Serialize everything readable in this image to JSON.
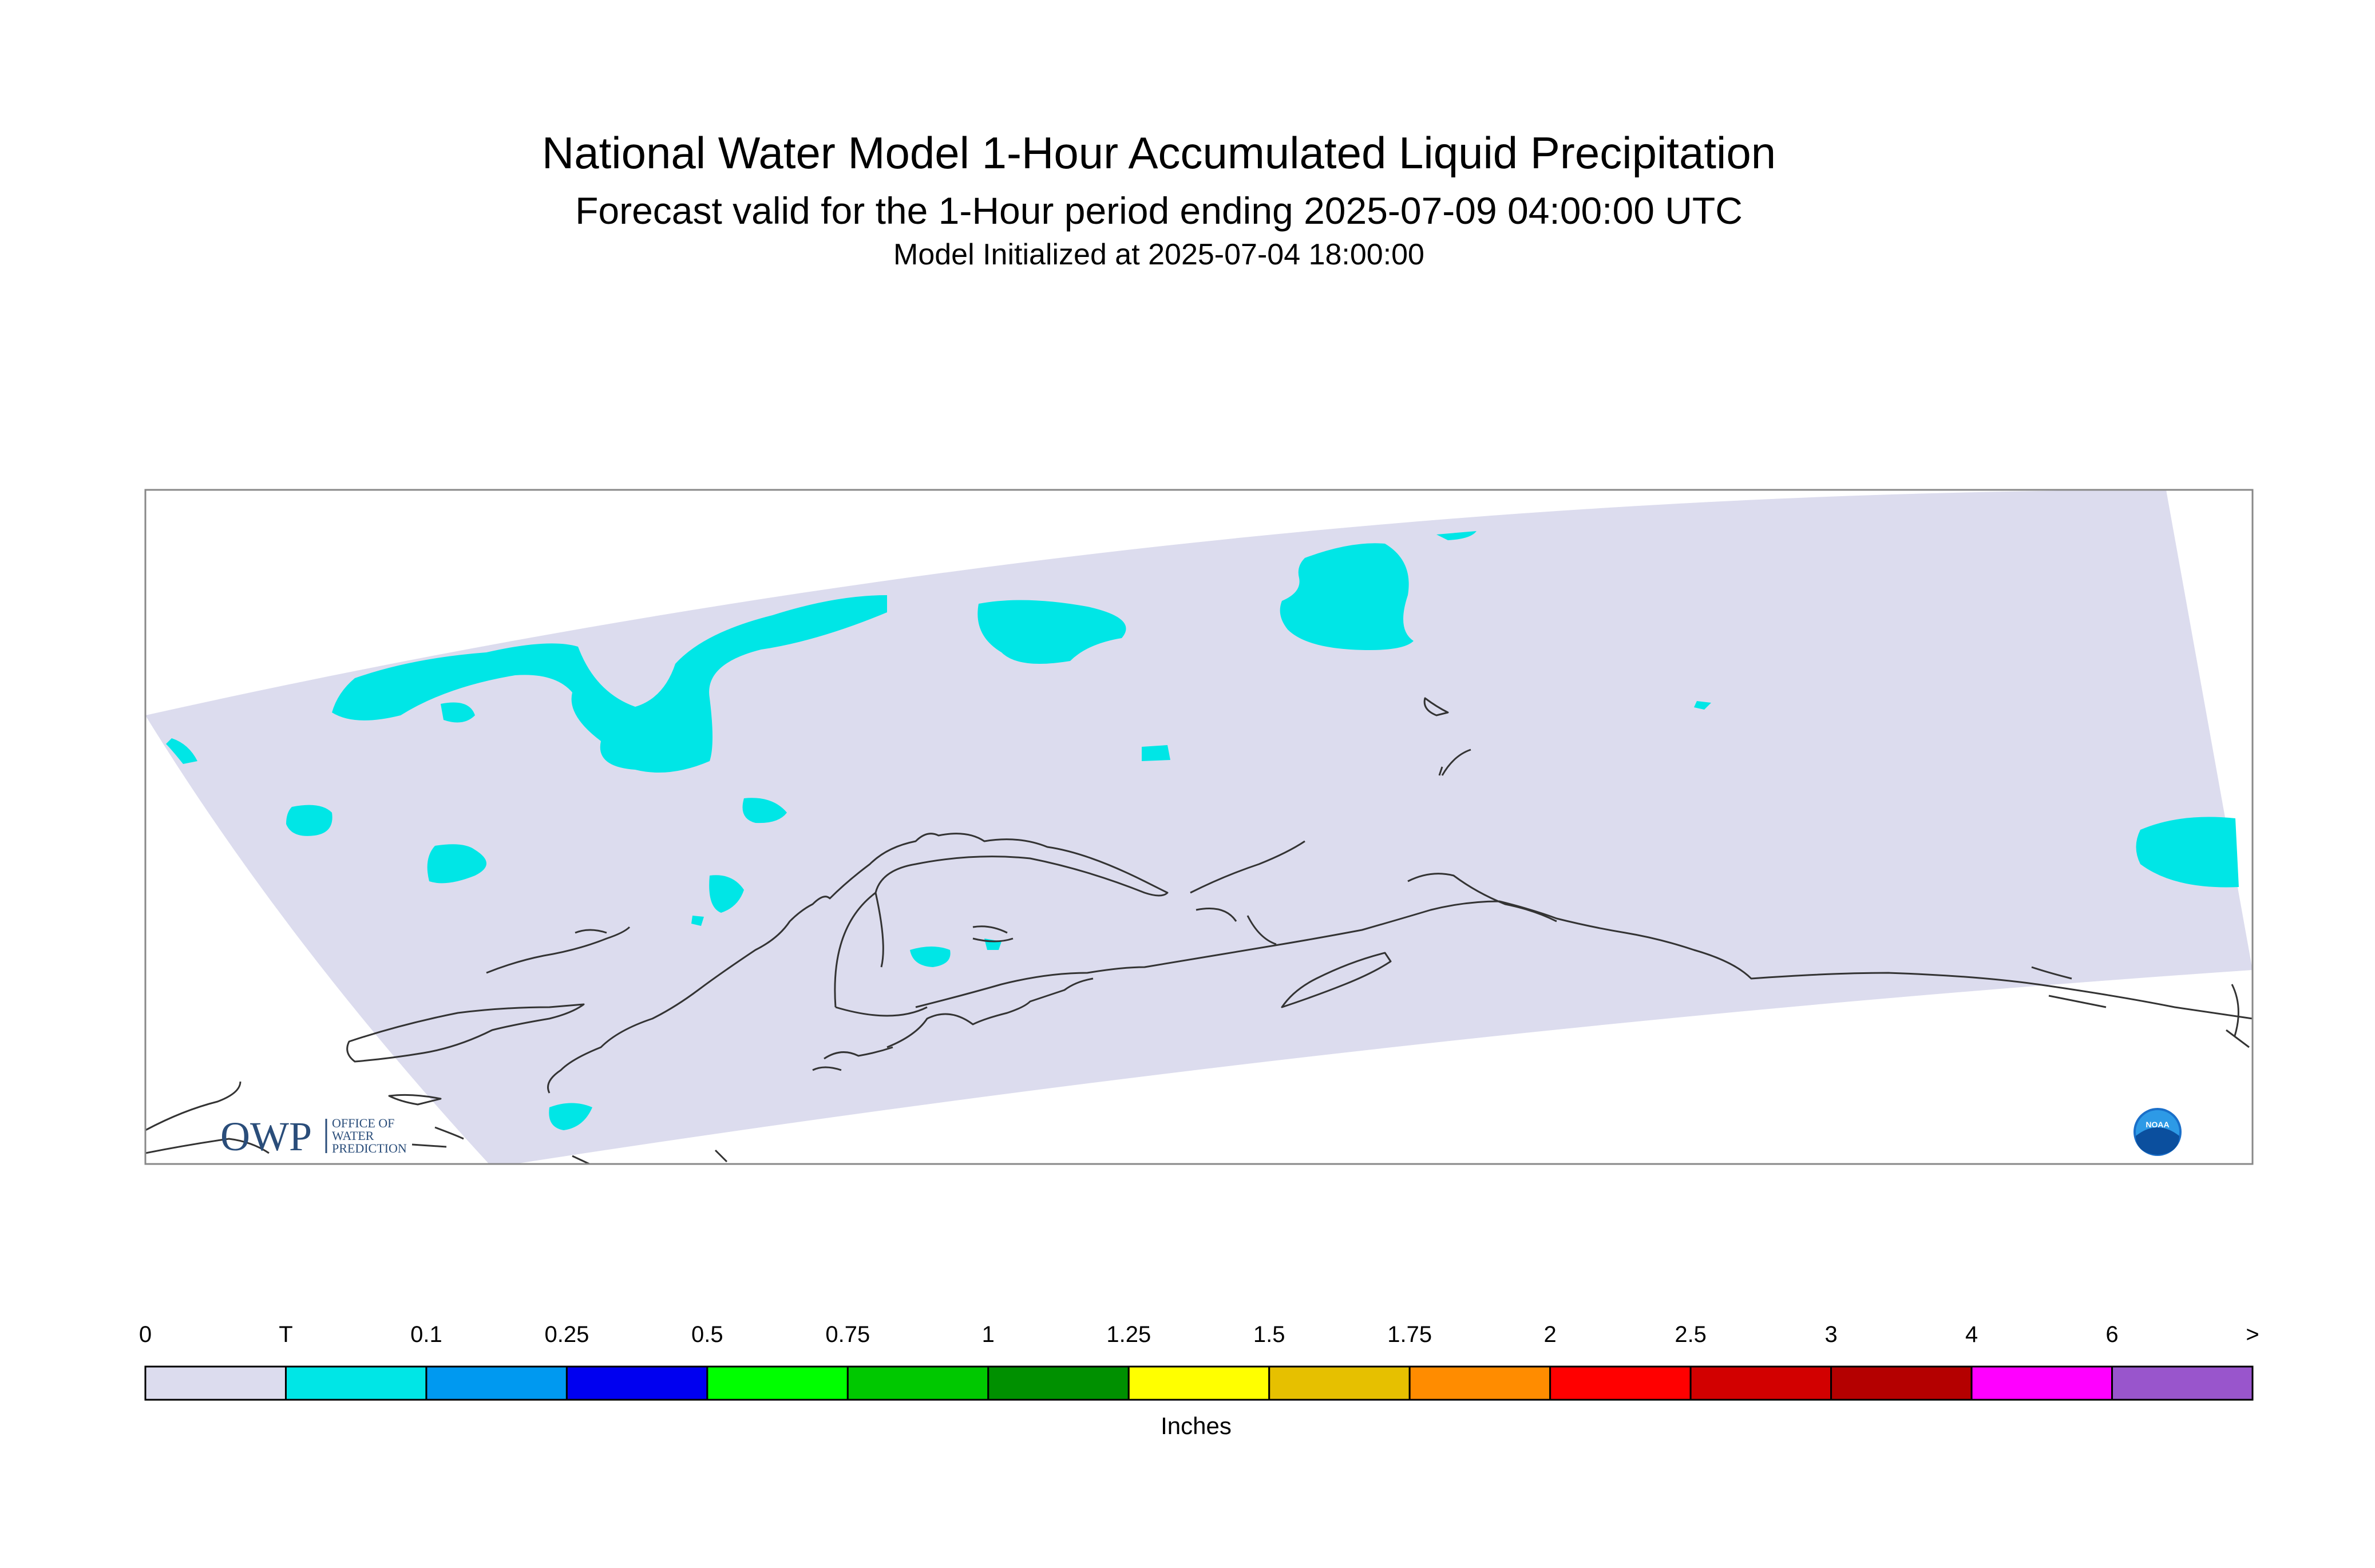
{
  "title": "National Water Model 1-Hour Accumulated Liquid Precipitation",
  "subtitle": "Forecast valid for the 1-Hour period ending 2025-07-09 04:00:00 UTC",
  "init_line": "Model Initialized at 2025-07-04 18:00:00",
  "colors": {
    "domain_fill": "#dcdcee",
    "trace": "#00e6e6",
    "coastline": "#333333",
    "frame": "#888888"
  },
  "legend": {
    "units": "Inches",
    "labels": [
      "0",
      "T",
      "0.1",
      "0.25",
      "0.5",
      "0.75",
      "1",
      "1.25",
      "1.5",
      "1.75",
      "2",
      "2.5",
      "3",
      "4",
      "6",
      ">"
    ],
    "colors": [
      "#dcdcee",
      "#00e6e6",
      "#0099f0",
      "#0000f0",
      "#00ff00",
      "#00c800",
      "#009000",
      "#ffff00",
      "#e6c000",
      "#ff8c00",
      "#ff0000",
      "#d20000",
      "#b40000",
      "#ff00ff",
      "#9955cc"
    ]
  },
  "logos": {
    "owp_mark": "OWP",
    "owp_line1": "OFFICE OF",
    "owp_line2": "WATER",
    "owp_line3": "PREDICTION",
    "noaa_text": "NOAA"
  }
}
